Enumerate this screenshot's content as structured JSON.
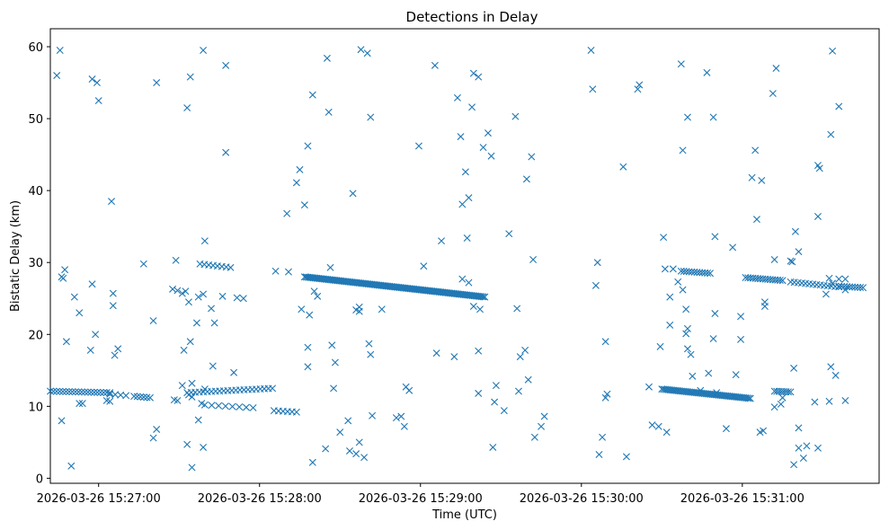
{
  "chart_data": {
    "type": "scatter",
    "title": "Detections in Delay",
    "xlabel": "Time (UTC)",
    "ylabel": "Bistatic Delay (km)",
    "x_unit": "minutes after 2026-03-26 15:27:00",
    "xlim": [
      -0.3,
      4.85
    ],
    "ylim": [
      -0.7,
      62.5
    ],
    "x_ticks": [
      {
        "value": 0,
        "label": "2026-03-26 15:27:00"
      },
      {
        "value": 1,
        "label": "2026-03-26 15:28:00"
      },
      {
        "value": 2,
        "label": "2026-03-26 15:29:00"
      },
      {
        "value": 3,
        "label": "2026-03-26 15:30:00"
      },
      {
        "value": 4,
        "label": "2026-03-26 15:31:00"
      }
    ],
    "y_ticks": [
      0,
      10,
      20,
      30,
      40,
      50,
      60
    ],
    "marker": "x",
    "color": "#1f77b4",
    "grid": false,
    "tracks": [
      {
        "x0": -0.3,
        "x1": 0.07,
        "y0": 12.1,
        "y1": 11.9,
        "n": 20
      },
      {
        "x0": 0.07,
        "x1": 0.17,
        "y0": 11.7,
        "y1": 11.5,
        "n": 4
      },
      {
        "x0": 0.22,
        "x1": 0.32,
        "y0": 11.4,
        "y1": 11.2,
        "n": 6
      },
      {
        "x0": 0.22,
        "x1": 0.63,
        "y0": 29.8,
        "y1": 29.4,
        "n": 0
      },
      {
        "x0": 0.63,
        "x1": 0.82,
        "y0": 29.8,
        "y1": 29.3,
        "n": 8
      },
      {
        "x0": 0.55,
        "x1": 1.08,
        "y0": 11.9,
        "y1": 12.5,
        "n": 22
      },
      {
        "x0": 0.66,
        "x1": 0.96,
        "y0": 10.2,
        "y1": 9.8,
        "n": 8
      },
      {
        "x0": 0.86,
        "x1": 0.9,
        "y0": 25.1,
        "y1": 25.0,
        "n": 2
      },
      {
        "x0": 1.09,
        "x1": 1.23,
        "y0": 9.4,
        "y1": 9.2,
        "n": 6
      },
      {
        "x0": 1.1,
        "x1": 1.18,
        "y0": 28.8,
        "y1": 28.7,
        "n": 2
      },
      {
        "x0": 1.28,
        "x1": 2.4,
        "y0": 28.0,
        "y1": 25.2,
        "n": 120
      },
      {
        "x0": 3.5,
        "x1": 4.05,
        "y0": 12.4,
        "y1": 11.1,
        "n": 55
      },
      {
        "x0": 4.2,
        "x1": 4.3,
        "y0": 12.1,
        "y1": 12.0,
        "n": 8
      },
      {
        "x0": 3.62,
        "x1": 3.8,
        "y0": 28.8,
        "y1": 28.5,
        "n": 12
      },
      {
        "x0": 4.02,
        "x1": 4.25,
        "y0": 27.9,
        "y1": 27.5,
        "n": 16
      },
      {
        "x0": 4.3,
        "x1": 4.6,
        "y0": 27.3,
        "y1": 26.6,
        "n": 14
      },
      {
        "x0": 4.6,
        "x1": 4.75,
        "y0": 26.7,
        "y1": 26.5,
        "n": 10
      }
    ],
    "points": [
      [
        -0.26,
        56
      ],
      [
        -0.24,
        59.5
      ],
      [
        0.0,
        52.5
      ],
      [
        -0.04,
        55.5
      ],
      [
        -0.01,
        55
      ],
      [
        0.08,
        38.5
      ],
      [
        -0.23,
        28
      ],
      [
        -0.21,
        29
      ],
      [
        -0.22,
        27.8
      ],
      [
        -0.15,
        25.2
      ],
      [
        -0.2,
        19
      ],
      [
        -0.23,
        8
      ],
      [
        -0.17,
        1.7
      ],
      [
        -0.12,
        23
      ],
      [
        -0.04,
        27
      ],
      [
        -0.02,
        20
      ],
      [
        -0.05,
        17.8
      ],
      [
        0.09,
        25.7
      ],
      [
        0.09,
        24
      ],
      [
        0.1,
        17.1
      ],
      [
        0.12,
        18
      ],
      [
        0.28,
        29.8
      ],
      [
        -0.12,
        10.4
      ],
      [
        -0.1,
        10.4
      ],
      [
        0.05,
        10.8
      ],
      [
        0.07,
        10.7
      ],
      [
        0.55,
        51.5
      ],
      [
        0.57,
        55.8
      ],
      [
        0.36,
        55
      ],
      [
        0.48,
        30.3
      ],
      [
        0.46,
        26.3
      ],
      [
        0.49,
        26.1
      ],
      [
        0.54,
        26
      ],
      [
        0.52,
        25.7
      ],
      [
        0.56,
        24.5
      ],
      [
        0.62,
        25.2
      ],
      [
        0.61,
        21.6
      ],
      [
        0.57,
        19
      ],
      [
        0.53,
        17.8
      ],
      [
        0.34,
        21.9
      ],
      [
        0.47,
        10.9
      ],
      [
        0.49,
        10.8
      ],
      [
        0.52,
        12.9
      ],
      [
        0.56,
        11.6
      ],
      [
        0.58,
        11.3
      ],
      [
        0.58,
        13.2
      ],
      [
        0.64,
        10.4
      ],
      [
        0.66,
        12.4
      ],
      [
        0.34,
        5.6
      ],
      [
        0.36,
        6.8
      ],
      [
        0.55,
        4.7
      ],
      [
        0.58,
        1.5
      ],
      [
        0.62,
        8.1
      ],
      [
        0.65,
        4.3
      ],
      [
        0.65,
        59.5
      ],
      [
        0.79,
        57.4
      ],
      [
        0.79,
        45.3
      ],
      [
        0.66,
        33
      ],
      [
        0.65,
        25.6
      ],
      [
        0.77,
        25.3
      ],
      [
        0.7,
        23.6
      ],
      [
        0.71,
        15.6
      ],
      [
        0.84,
        14.7
      ],
      [
        0.72,
        21.6
      ],
      [
        1.3,
        46.2
      ],
      [
        1.25,
        42.9
      ],
      [
        1.23,
        41.1
      ],
      [
        1.33,
        53.3
      ],
      [
        1.42,
        58.4
      ],
      [
        1.43,
        50.9
      ],
      [
        1.17,
        36.8
      ],
      [
        1.28,
        38
      ],
      [
        1.26,
        23.5
      ],
      [
        1.31,
        22.7
      ],
      [
        1.36,
        25.3
      ],
      [
        1.34,
        26
      ],
      [
        1.44,
        29.3
      ],
      [
        1.45,
        18.5
      ],
      [
        1.47,
        16.1
      ],
      [
        1.3,
        18.2
      ],
      [
        1.3,
        15.5
      ],
      [
        1.46,
        12.5
      ],
      [
        1.33,
        2.2
      ],
      [
        1.41,
        4.1
      ],
      [
        1.5,
        6.4
      ],
      [
        1.55,
        8
      ],
      [
        1.56,
        3.8
      ],
      [
        1.6,
        3.4
      ],
      [
        1.62,
        5
      ],
      [
        1.65,
        2.9
      ],
      [
        1.63,
        59.6
      ],
      [
        1.67,
        59.1
      ],
      [
        1.69,
        50.2
      ],
      [
        1.58,
        39.6
      ],
      [
        1.6,
        23.4
      ],
      [
        1.62,
        23.8
      ],
      [
        1.62,
        23.2
      ],
      [
        1.68,
        18.7
      ],
      [
        1.69,
        17.2
      ],
      [
        1.7,
        8.7
      ],
      [
        1.76,
        23.5
      ],
      [
        1.85,
        8.4
      ],
      [
        1.88,
        8.6
      ],
      [
        1.9,
        7.2
      ],
      [
        1.91,
        12.7
      ],
      [
        1.93,
        12.2
      ],
      [
        1.99,
        46.2
      ],
      [
        2.02,
        29.5
      ],
      [
        2.09,
        57.4
      ],
      [
        2.1,
        17.4
      ],
      [
        2.13,
        33
      ],
      [
        2.23,
        52.9
      ],
      [
        2.25,
        47.5
      ],
      [
        2.28,
        42.6
      ],
      [
        2.26,
        38.1
      ],
      [
        2.3,
        39
      ],
      [
        2.29,
        33.4
      ],
      [
        2.32,
        51.6
      ],
      [
        2.33,
        56.3
      ],
      [
        2.36,
        55.8
      ],
      [
        2.39,
        46
      ],
      [
        2.42,
        48
      ],
      [
        2.44,
        44.8
      ],
      [
        2.33,
        23.9
      ],
      [
        2.37,
        23.5
      ],
      [
        2.36,
        17.7
      ],
      [
        2.36,
        11.8
      ],
      [
        2.21,
        16.9
      ],
      [
        2.26,
        27.7
      ],
      [
        2.3,
        27.2
      ],
      [
        2.45,
        4.3
      ],
      [
        2.46,
        10.6
      ],
      [
        2.47,
        12.9
      ],
      [
        2.52,
        9.4
      ],
      [
        2.55,
        34
      ],
      [
        2.59,
        50.3
      ],
      [
        2.62,
        16.9
      ],
      [
        2.65,
        17.8
      ],
      [
        2.66,
        41.6
      ],
      [
        2.6,
        23.6
      ],
      [
        2.61,
        12.1
      ],
      [
        2.69,
        44.7
      ],
      [
        2.7,
        30.4
      ],
      [
        2.67,
        13.7
      ],
      [
        2.71,
        5.7
      ],
      [
        2.75,
        7.2
      ],
      [
        2.77,
        8.6
      ],
      [
        3.06,
        59.5
      ],
      [
        3.07,
        54.1
      ],
      [
        3.09,
        26.8
      ],
      [
        3.1,
        30
      ],
      [
        3.13,
        5.7
      ],
      [
        3.11,
        3.3
      ],
      [
        3.16,
        11.7
      ],
      [
        3.15,
        11.2
      ],
      [
        3.15,
        19
      ],
      [
        3.26,
        43.3
      ],
      [
        3.28,
        3.0
      ],
      [
        3.35,
        54.1
      ],
      [
        3.36,
        54.7
      ],
      [
        3.42,
        12.7
      ],
      [
        3.44,
        7.4
      ],
      [
        3.48,
        7.2
      ],
      [
        3.53,
        6.4
      ],
      [
        3.49,
        18.3
      ],
      [
        3.52,
        29.1
      ],
      [
        3.51,
        33.5
      ],
      [
        3.55,
        25.2
      ],
      [
        3.55,
        21.3
      ],
      [
        3.6,
        27.3
      ],
      [
        3.57,
        29.1
      ],
      [
        3.63,
        26.2
      ],
      [
        3.65,
        23.5
      ],
      [
        3.66,
        20.8
      ],
      [
        3.68,
        17.2
      ],
      [
        3.65,
        20.1
      ],
      [
        3.69,
        14.2
      ],
      [
        3.66,
        18
      ],
      [
        3.74,
        12.2
      ],
      [
        3.79,
        14.6
      ],
      [
        3.84,
        11.9
      ],
      [
        3.62,
        57.6
      ],
      [
        3.63,
        45.6
      ],
      [
        3.66,
        50.2
      ],
      [
        3.78,
        56.4
      ],
      [
        3.82,
        50.2
      ],
      [
        3.83,
        33.6
      ],
      [
        3.83,
        22.9
      ],
      [
        3.82,
        19.4
      ],
      [
        3.9,
        6.9
      ],
      [
        3.94,
        32.1
      ],
      [
        3.96,
        14.4
      ],
      [
        3.99,
        22.5
      ],
      [
        3.99,
        19.3
      ],
      [
        4.06,
        41.8
      ],
      [
        4.08,
        45.6
      ],
      [
        4.09,
        36
      ],
      [
        4.12,
        41.4
      ],
      [
        4.14,
        24.5
      ],
      [
        4.14,
        23.9
      ],
      [
        4.19,
        53.5
      ],
      [
        4.21,
        57
      ],
      [
        4.2,
        30.4
      ],
      [
        4.11,
        6.4
      ],
      [
        4.13,
        6.6
      ],
      [
        4.2,
        9.9
      ],
      [
        4.24,
        10.3
      ],
      [
        4.25,
        11.2
      ],
      [
        4.3,
        30.2
      ],
      [
        4.31,
        30.1
      ],
      [
        4.33,
        34.3
      ],
      [
        4.35,
        31.5
      ],
      [
        4.32,
        15.3
      ],
      [
        4.35,
        7
      ],
      [
        4.35,
        4.2
      ],
      [
        4.32,
        1.9
      ],
      [
        4.38,
        2.8
      ],
      [
        4.4,
        4.5
      ],
      [
        4.47,
        4.2
      ],
      [
        4.45,
        10.6
      ],
      [
        4.47,
        36.4
      ],
      [
        4.47,
        43.5
      ],
      [
        4.48,
        43.1
      ],
      [
        4.52,
        25.6
      ],
      [
        4.54,
        27.8
      ],
      [
        4.56,
        27.1
      ],
      [
        4.54,
        10.7
      ],
      [
        4.55,
        15.5
      ],
      [
        4.55,
        47.8
      ],
      [
        4.58,
        14.3
      ],
      [
        4.56,
        59.4
      ],
      [
        4.6,
        51.7
      ],
      [
        4.6,
        27.7
      ],
      [
        4.64,
        27.7
      ],
      [
        4.64,
        26.2
      ],
      [
        4.64,
        10.8
      ]
    ]
  }
}
